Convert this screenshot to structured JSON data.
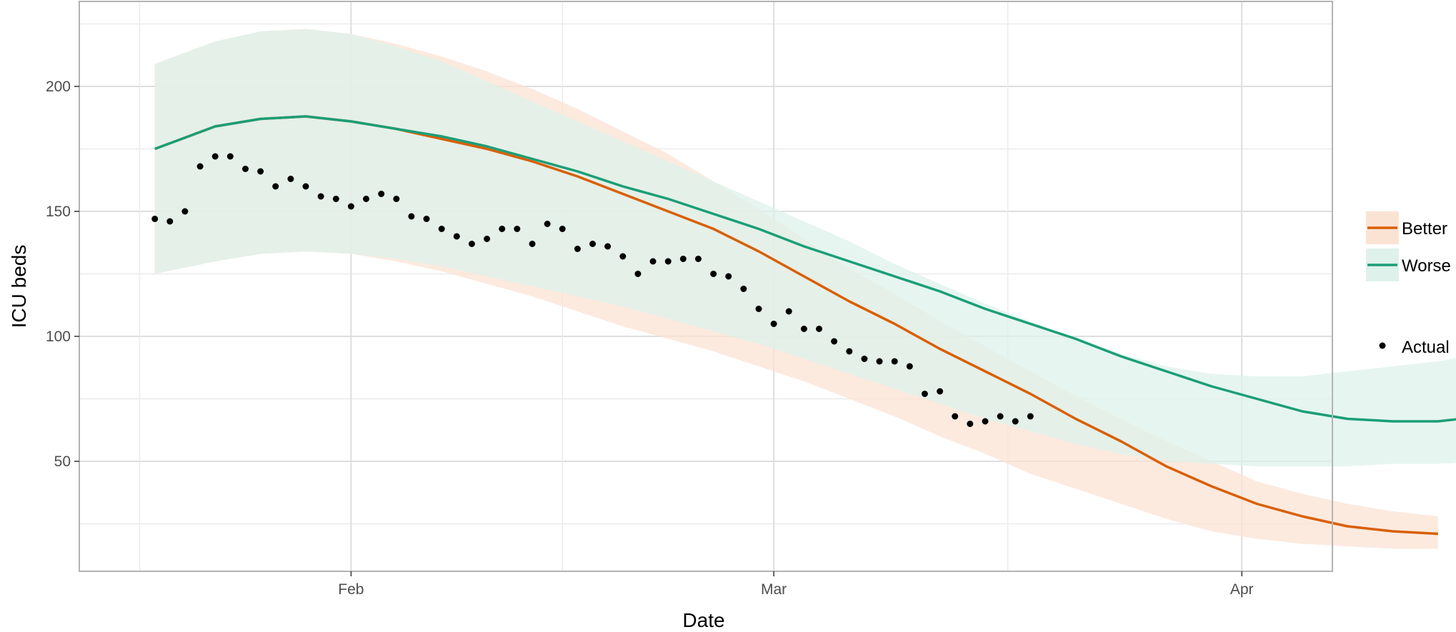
{
  "chart_data": {
    "type": "line",
    "title": "",
    "xlabel": "Date",
    "ylabel": "ICU beds",
    "x_ticks": [
      {
        "label": "Feb",
        "date": "2021-02-01"
      },
      {
        "label": "Mar",
        "date": "2021-03-01"
      },
      {
        "label": "Apr",
        "date": "2021-04-01"
      }
    ],
    "y_ticks": [
      50,
      100,
      150,
      200
    ],
    "xlim": [
      "2021-01-14",
      "2021-04-07"
    ],
    "ylim": [
      6,
      234
    ],
    "grid": true,
    "legend_position": "right",
    "series": [
      {
        "name": "Better",
        "color": "#D95F02",
        "band_color": "#FBE3D4",
        "line": [
          [
            "2021-01-19",
            175
          ],
          [
            "2021-01-23",
            184
          ],
          [
            "2021-01-26",
            187
          ],
          [
            "2021-01-29",
            188
          ],
          [
            "2021-02-01",
            186
          ],
          [
            "2021-02-04",
            183
          ],
          [
            "2021-02-07",
            179
          ],
          [
            "2021-02-10",
            175
          ],
          [
            "2021-02-13",
            170
          ],
          [
            "2021-02-16",
            164
          ],
          [
            "2021-02-19",
            157
          ],
          [
            "2021-02-22",
            150
          ],
          [
            "2021-02-25",
            143
          ],
          [
            "2021-02-28",
            134
          ],
          [
            "2021-03-03",
            124
          ],
          [
            "2021-03-06",
            114
          ],
          [
            "2021-03-09",
            105
          ],
          [
            "2021-03-12",
            95
          ],
          [
            "2021-03-15",
            86
          ],
          [
            "2021-03-18",
            77
          ],
          [
            "2021-03-21",
            67
          ],
          [
            "2021-03-24",
            58
          ],
          [
            "2021-03-27",
            48
          ],
          [
            "2021-03-30",
            40
          ],
          [
            "2021-04-02",
            33
          ],
          [
            "2021-04-05",
            28
          ],
          [
            "2021-04-08",
            24
          ],
          [
            "2021-04-11",
            22
          ],
          [
            "2021-04-14",
            21
          ]
        ],
        "upper": [
          [
            "2021-01-19",
            209
          ],
          [
            "2021-01-23",
            218
          ],
          [
            "2021-01-26",
            222
          ],
          [
            "2021-01-29",
            223
          ],
          [
            "2021-02-01",
            221
          ],
          [
            "2021-02-04",
            217
          ],
          [
            "2021-02-07",
            212
          ],
          [
            "2021-02-10",
            206
          ],
          [
            "2021-02-13",
            199
          ],
          [
            "2021-02-16",
            191
          ],
          [
            "2021-02-19",
            182
          ],
          [
            "2021-02-22",
            173
          ],
          [
            "2021-02-25",
            162
          ],
          [
            "2021-02-28",
            151
          ],
          [
            "2021-03-03",
            139
          ],
          [
            "2021-03-06",
            127
          ],
          [
            "2021-03-09",
            117
          ],
          [
            "2021-03-12",
            106
          ],
          [
            "2021-03-15",
            96
          ],
          [
            "2021-03-18",
            86
          ],
          [
            "2021-03-21",
            76
          ],
          [
            "2021-03-24",
            67
          ],
          [
            "2021-03-27",
            58
          ],
          [
            "2021-03-30",
            50
          ],
          [
            "2021-04-02",
            42
          ],
          [
            "2021-04-05",
            37
          ],
          [
            "2021-04-08",
            33
          ],
          [
            "2021-04-11",
            30
          ],
          [
            "2021-04-14",
            28
          ]
        ],
        "lower": [
          [
            "2021-01-19",
            125
          ],
          [
            "2021-01-23",
            130
          ],
          [
            "2021-01-26",
            133
          ],
          [
            "2021-01-29",
            134
          ],
          [
            "2021-02-01",
            133
          ],
          [
            "2021-02-04",
            130
          ],
          [
            "2021-02-07",
            126
          ],
          [
            "2021-02-10",
            121
          ],
          [
            "2021-02-13",
            116
          ],
          [
            "2021-02-16",
            110
          ],
          [
            "2021-02-19",
            104
          ],
          [
            "2021-02-22",
            99
          ],
          [
            "2021-02-25",
            94
          ],
          [
            "2021-02-28",
            88
          ],
          [
            "2021-03-03",
            82
          ],
          [
            "2021-03-06",
            75
          ],
          [
            "2021-03-09",
            68
          ],
          [
            "2021-03-12",
            60
          ],
          [
            "2021-03-15",
            53
          ],
          [
            "2021-03-18",
            45
          ],
          [
            "2021-03-21",
            39
          ],
          [
            "2021-03-24",
            33
          ],
          [
            "2021-03-27",
            27
          ],
          [
            "2021-03-30",
            22
          ],
          [
            "2021-04-02",
            19
          ],
          [
            "2021-04-05",
            17
          ],
          [
            "2021-04-08",
            16
          ],
          [
            "2021-04-11",
            15
          ],
          [
            "2021-04-14",
            15
          ]
        ]
      },
      {
        "name": "Worse",
        "color": "#1B9E77",
        "band_color": "#DEF1EB",
        "line": [
          [
            "2021-01-19",
            175
          ],
          [
            "2021-01-23",
            184
          ],
          [
            "2021-01-26",
            187
          ],
          [
            "2021-01-29",
            188
          ],
          [
            "2021-02-01",
            186
          ],
          [
            "2021-02-04",
            183
          ],
          [
            "2021-02-07",
            180
          ],
          [
            "2021-02-10",
            176
          ],
          [
            "2021-02-13",
            171
          ],
          [
            "2021-02-16",
            166
          ],
          [
            "2021-02-19",
            160
          ],
          [
            "2021-02-22",
            155
          ],
          [
            "2021-02-25",
            149
          ],
          [
            "2021-02-28",
            143
          ],
          [
            "2021-03-03",
            136
          ],
          [
            "2021-03-06",
            130
          ],
          [
            "2021-03-09",
            124
          ],
          [
            "2021-03-12",
            118
          ],
          [
            "2021-03-15",
            111
          ],
          [
            "2021-03-18",
            105
          ],
          [
            "2021-03-21",
            99
          ],
          [
            "2021-03-24",
            92
          ],
          [
            "2021-03-27",
            86
          ],
          [
            "2021-03-30",
            80
          ],
          [
            "2021-04-02",
            75
          ],
          [
            "2021-04-05",
            70
          ],
          [
            "2021-04-08",
            67
          ],
          [
            "2021-04-11",
            66
          ],
          [
            "2021-04-14",
            66
          ],
          [
            "2021-04-17",
            68
          ],
          [
            "2021-04-20",
            72
          ]
        ],
        "upper": [
          [
            "2021-01-19",
            209
          ],
          [
            "2021-01-23",
            218
          ],
          [
            "2021-01-26",
            222
          ],
          [
            "2021-01-29",
            223
          ],
          [
            "2021-02-01",
            221
          ],
          [
            "2021-02-04",
            216
          ],
          [
            "2021-02-07",
            210
          ],
          [
            "2021-02-10",
            202
          ],
          [
            "2021-02-13",
            194
          ],
          [
            "2021-02-16",
            186
          ],
          [
            "2021-02-19",
            178
          ],
          [
            "2021-02-22",
            170
          ],
          [
            "2021-02-25",
            162
          ],
          [
            "2021-02-28",
            154
          ],
          [
            "2021-03-03",
            146
          ],
          [
            "2021-03-06",
            138
          ],
          [
            "2021-03-09",
            129
          ],
          [
            "2021-03-12",
            121
          ],
          [
            "2021-03-15",
            113
          ],
          [
            "2021-03-18",
            106
          ],
          [
            "2021-03-21",
            99
          ],
          [
            "2021-03-24",
            93
          ],
          [
            "2021-03-27",
            88
          ],
          [
            "2021-03-30",
            85
          ],
          [
            "2021-04-02",
            84
          ],
          [
            "2021-04-05",
            84
          ],
          [
            "2021-04-08",
            86
          ],
          [
            "2021-04-11",
            88
          ],
          [
            "2021-04-14",
            90
          ],
          [
            "2021-04-17",
            93
          ],
          [
            "2021-04-20",
            96
          ]
        ],
        "lower": [
          [
            "2021-01-19",
            125
          ],
          [
            "2021-01-23",
            130
          ],
          [
            "2021-01-26",
            133
          ],
          [
            "2021-01-29",
            134
          ],
          [
            "2021-02-01",
            133
          ],
          [
            "2021-02-04",
            131
          ],
          [
            "2021-02-07",
            128
          ],
          [
            "2021-02-10",
            124
          ],
          [
            "2021-02-13",
            120
          ],
          [
            "2021-02-16",
            116
          ],
          [
            "2021-02-19",
            112
          ],
          [
            "2021-02-22",
            107
          ],
          [
            "2021-02-25",
            102
          ],
          [
            "2021-02-28",
            97
          ],
          [
            "2021-03-03",
            91
          ],
          [
            "2021-03-06",
            85
          ],
          [
            "2021-03-09",
            79
          ],
          [
            "2021-03-12",
            73
          ],
          [
            "2021-03-15",
            67
          ],
          [
            "2021-03-18",
            62
          ],
          [
            "2021-03-21",
            57
          ],
          [
            "2021-03-24",
            53
          ],
          [
            "2021-03-27",
            50
          ],
          [
            "2021-03-30",
            49
          ],
          [
            "2021-04-02",
            48
          ],
          [
            "2021-04-05",
            48
          ],
          [
            "2021-04-08",
            48
          ],
          [
            "2021-04-11",
            49
          ],
          [
            "2021-04-14",
            49
          ],
          [
            "2021-04-17",
            50
          ],
          [
            "2021-04-20",
            50
          ]
        ]
      },
      {
        "name": "Actual",
        "color": "#000000",
        "points": [
          [
            "2021-01-19",
            147
          ],
          [
            "2021-01-20",
            146
          ],
          [
            "2021-01-21",
            150
          ],
          [
            "2021-01-22",
            168
          ],
          [
            "2021-01-23",
            172
          ],
          [
            "2021-01-24",
            172
          ],
          [
            "2021-01-25",
            167
          ],
          [
            "2021-01-26",
            166
          ],
          [
            "2021-01-27",
            160
          ],
          [
            "2021-01-28",
            163
          ],
          [
            "2021-01-29",
            160
          ],
          [
            "2021-01-30",
            156
          ],
          [
            "2021-01-31",
            155
          ],
          [
            "2021-02-01",
            152
          ],
          [
            "2021-02-02",
            155
          ],
          [
            "2021-02-03",
            157
          ],
          [
            "2021-02-04",
            155
          ],
          [
            "2021-02-05",
            148
          ],
          [
            "2021-02-06",
            147
          ],
          [
            "2021-02-07",
            143
          ],
          [
            "2021-02-08",
            140
          ],
          [
            "2021-02-09",
            137
          ],
          [
            "2021-02-10",
            139
          ],
          [
            "2021-02-11",
            143
          ],
          [
            "2021-02-12",
            143
          ],
          [
            "2021-02-13",
            137
          ],
          [
            "2021-02-14",
            145
          ],
          [
            "2021-02-15",
            143
          ],
          [
            "2021-02-16",
            135
          ],
          [
            "2021-02-17",
            137
          ],
          [
            "2021-02-18",
            136
          ],
          [
            "2021-02-19",
            132
          ],
          [
            "2021-02-20",
            125
          ],
          [
            "2021-02-21",
            130
          ],
          [
            "2021-02-22",
            130
          ],
          [
            "2021-02-23",
            131
          ],
          [
            "2021-02-24",
            131
          ],
          [
            "2021-02-25",
            125
          ],
          [
            "2021-02-26",
            124
          ],
          [
            "2021-02-27",
            119
          ],
          [
            "2021-02-28",
            111
          ],
          [
            "2021-03-01",
            105
          ],
          [
            "2021-03-02",
            110
          ],
          [
            "2021-03-03",
            103
          ],
          [
            "2021-03-04",
            103
          ],
          [
            "2021-03-05",
            98
          ],
          [
            "2021-03-06",
            94
          ],
          [
            "2021-03-07",
            91
          ],
          [
            "2021-03-08",
            90
          ],
          [
            "2021-03-09",
            90
          ],
          [
            "2021-03-10",
            88
          ],
          [
            "2021-03-11",
            77
          ],
          [
            "2021-03-12",
            78
          ],
          [
            "2021-03-13",
            68
          ],
          [
            "2021-03-14",
            65
          ],
          [
            "2021-03-15",
            66
          ],
          [
            "2021-03-16",
            68
          ],
          [
            "2021-03-17",
            66
          ],
          [
            "2021-03-18",
            68
          ]
        ]
      }
    ]
  }
}
